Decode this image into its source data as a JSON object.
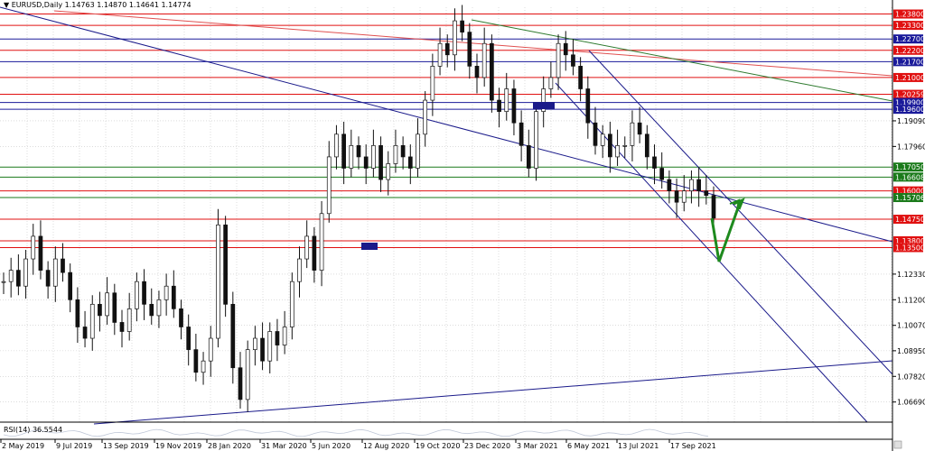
{
  "header": {
    "symbol_text": "EURUSD,Daily  1.14763 1.14870 1.14641 1.14774"
  },
  "rsi": {
    "label": "RSI(14) 36.5544"
  },
  "chart_data": {
    "type": "candlestick",
    "y_ticks": [
      1.0669,
      1.0782,
      1.0895,
      1.1007,
      1.112,
      1.1233,
      1.1796,
      1.1909
    ],
    "x_ticks": [
      "2 May 2019",
      "9 Jul 2019",
      "13 Sep 2019",
      "19 Nov 2019",
      "28 Jan 2020",
      "31 Mar 2020",
      "5 Jun 2020",
      "12 Aug 2020",
      "19 Oct 2020",
      "23 Dec 2020",
      "3 Mar 2021",
      "6 May 2021",
      "13 Jul 2021",
      "17 Sep 2021"
    ],
    "price_tags": [
      {
        "value": "1.23800",
        "color": "#e01010"
      },
      {
        "value": "1.23300",
        "color": "#e01010"
      },
      {
        "value": "1.22700",
        "color": "#1a1a9a"
      },
      {
        "value": "1.22200",
        "color": "#e01010"
      },
      {
        "value": "1.21700",
        "color": "#1a1a9a"
      },
      {
        "value": "1.21000",
        "color": "#e01010"
      },
      {
        "value": "1.20259",
        "color": "#e01010"
      },
      {
        "value": "1.19900",
        "color": "#1a1a9a"
      },
      {
        "value": "1.19600",
        "color": "#1a1a9a"
      },
      {
        "value": "1.17050",
        "color": "#1a7a1a"
      },
      {
        "value": "1.16608",
        "color": "#1a7a1a"
      },
      {
        "value": "1.16000",
        "color": "#e01010"
      },
      {
        "value": "1.15706",
        "color": "#1a7a1a"
      },
      {
        "value": "1.14750",
        "color": "#e01010"
      },
      {
        "value": "1.13800",
        "color": "#e01010"
      },
      {
        "value": "1.13500",
        "color": "#e01010"
      }
    ],
    "close_series": [
      1.12,
      1.125,
      1.118,
      1.13,
      1.14,
      1.125,
      1.118,
      1.13,
      1.124,
      1.112,
      1.1,
      1.095,
      1.11,
      1.105,
      1.115,
      1.102,
      1.098,
      1.108,
      1.12,
      1.11,
      1.105,
      1.112,
      1.118,
      1.108,
      1.1,
      1.09,
      1.08,
      1.085,
      1.095,
      1.145,
      1.11,
      1.082,
      1.068,
      1.09,
      1.095,
      1.085,
      1.098,
      1.092,
      1.1,
      1.12,
      1.13,
      1.14,
      1.125,
      1.15,
      1.175,
      1.185,
      1.17,
      1.18,
      1.175,
      1.17,
      1.18,
      1.165,
      1.172,
      1.18,
      1.175,
      1.17,
      1.185,
      1.2,
      1.215,
      1.225,
      1.22,
      1.235,
      1.23,
      1.215,
      1.21,
      1.225,
      1.2,
      1.195,
      1.205,
      1.19,
      1.18,
      1.17,
      1.195,
      1.205,
      1.21,
      1.225,
      1.22,
      1.215,
      1.205,
      1.19,
      1.18,
      1.185,
      1.175,
      1.18,
      1.18,
      1.19,
      1.185,
      1.175,
      1.17,
      1.165,
      1.16,
      1.155,
      1.16,
      1.165,
      1.16,
      1.158,
      1.148
    ]
  }
}
